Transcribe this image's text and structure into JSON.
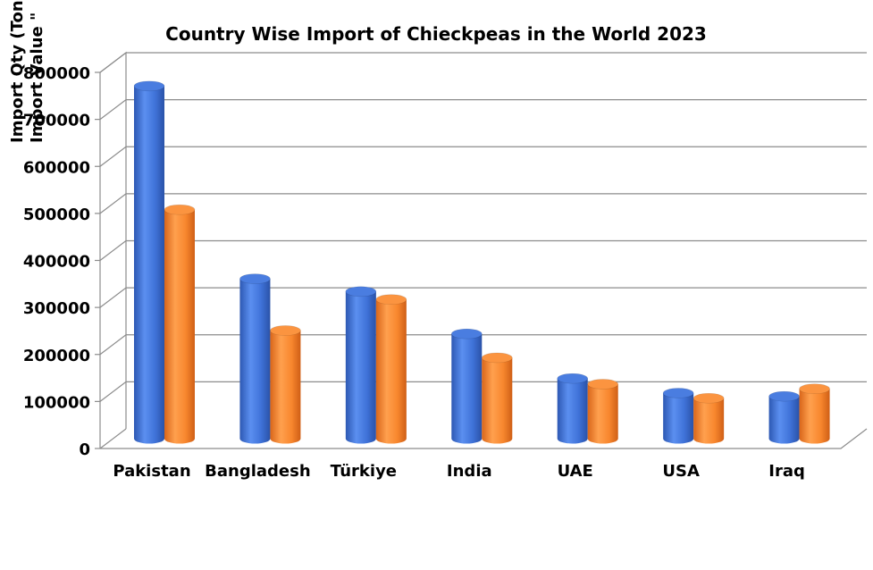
{
  "chart_data": {
    "type": "bar",
    "title": "Country Wise Import of Chieckpeas in the World 2023",
    "ylabel": [
      "Import Qty (Tons)",
      "Import Value \""
    ],
    "xlabel": "",
    "categories": [
      "Pakistan",
      "Bangladesh",
      "Türkiye",
      "India",
      "UAE",
      "USA",
      "Iraq"
    ],
    "series": [
      {
        "values": [
          750000,
          340000,
          313000,
          223000,
          128000,
          97000,
          90000
        ],
        "color": "#3f72d8"
      },
      {
        "values": [
          487000,
          230000,
          296000,
          172000,
          116000,
          86000,
          106000
        ],
        "color": "#f8872e"
      }
    ],
    "yticks": [
      "0",
      "100000",
      "200000",
      "300000",
      "400000",
      "500000",
      "600000",
      "700000",
      "800000"
    ],
    "ylim": [
      0,
      800000
    ],
    "grid": true,
    "legend": "none",
    "style": "3d-cylinder"
  }
}
